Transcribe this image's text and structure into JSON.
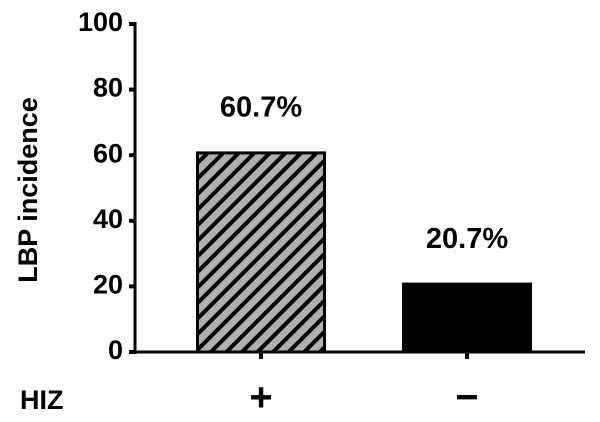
{
  "chart_data": {
    "type": "bar",
    "ylabel": "LBP incidence",
    "xlabel": "HIZ",
    "categories": [
      "+",
      "−"
    ],
    "values": [
      60.7,
      20.7
    ],
    "value_labels": [
      "60.7%",
      "20.7%"
    ],
    "colors": [
      "#9a9a9a",
      "#000000"
    ],
    "hatch": [
      true,
      false
    ],
    "ylim": [
      0,
      100
    ],
    "yticks": [
      0,
      20,
      40,
      60,
      80,
      100
    ],
    "grid": false
  }
}
